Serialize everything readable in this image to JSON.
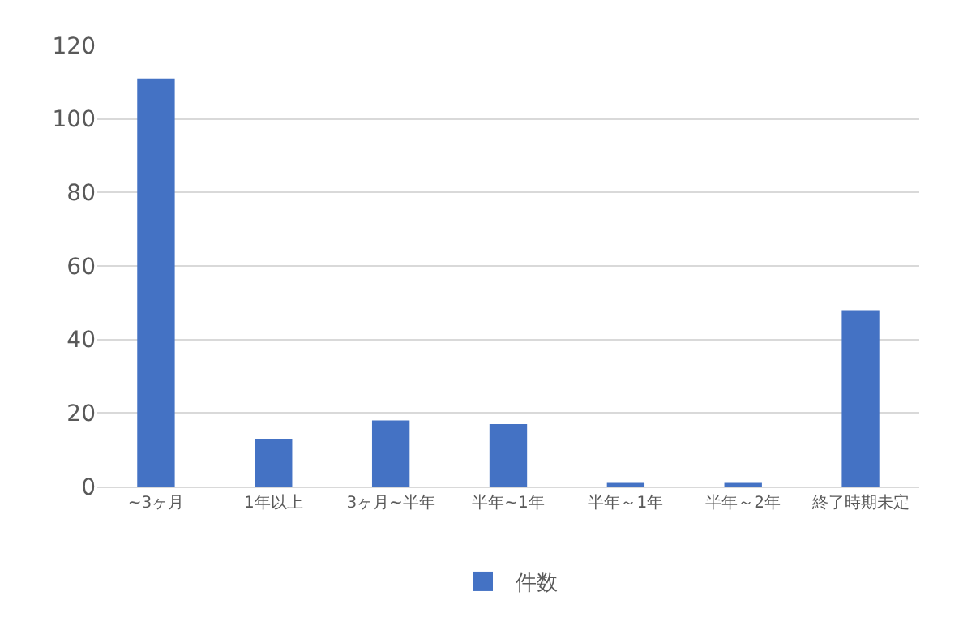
{
  "chart_data": {
    "type": "bar",
    "categories": [
      "~3ヶ月",
      "1年以上",
      "3ヶ月~半年",
      "半年~1年",
      "半年～1年",
      "半年～2年",
      "終了時期未定"
    ],
    "series": [
      {
        "name": "件数",
        "color": "#4472c4",
        "values": [
          111,
          13,
          18,
          17,
          1,
          1,
          48
        ]
      }
    ],
    "ylim": [
      0,
      120
    ],
    "yticks": [
      0,
      20,
      40,
      60,
      80,
      100,
      120
    ],
    "grid": "y",
    "legend": "bottom"
  }
}
